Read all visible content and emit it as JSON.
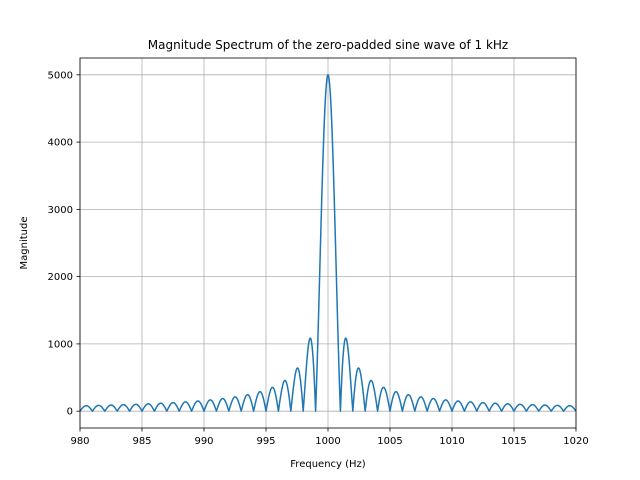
{
  "chart_data": {
    "type": "line",
    "title": "Magnitude Spectrum of the zero-padded sine wave of 1 kHz",
    "xlabel": "Frequency (Hz)",
    "ylabel": "Magnitude",
    "xlim": [
      980,
      1020
    ],
    "ylim": [
      -250,
      5250
    ],
    "xticks": [
      980,
      985,
      990,
      995,
      1000,
      1005,
      1010,
      1015,
      1020
    ],
    "xtick_labels": [
      "980",
      "985",
      "990",
      "995",
      "1000",
      "1005",
      "1010",
      "1015",
      "1020"
    ],
    "yticks": [
      0,
      1000,
      2000,
      3000,
      4000,
      5000
    ],
    "ytick_labels": [
      "0",
      "1000",
      "2000",
      "3000",
      "4000",
      "5000"
    ],
    "grid": true,
    "line_color": "#1f77b4",
    "series": [
      {
        "function": "abs(sinc)",
        "peak_frequency": 1000,
        "peak_magnitude": 5000,
        "null_spacing": 1,
        "x_start": 980,
        "x_end": 1020,
        "x_step": 0.02,
        "sample_points": [
          {
            "x": 998.7,
            "y": 1090
          },
          {
            "x": 1001.3,
            "y": 1090
          },
          {
            "x": 997.5,
            "y": 640
          },
          {
            "x": 1002.5,
            "y": 640
          },
          {
            "x": 996.5,
            "y": 455
          },
          {
            "x": 995.5,
            "y": 355
          },
          {
            "x": 990.5,
            "y": 168
          },
          {
            "x": 985.5,
            "y": 109
          },
          {
            "x": 980.5,
            "y": 80
          }
        ]
      }
    ]
  }
}
